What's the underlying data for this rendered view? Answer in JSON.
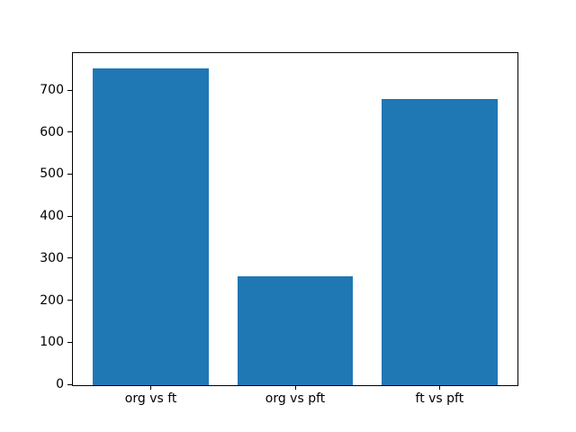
{
  "figure": {
    "background": "#ffffff",
    "title": ""
  },
  "chart_data": {
    "type": "bar",
    "categories": [
      "org vs ft",
      "org vs pft",
      "ft vs pft"
    ],
    "values": [
      754,
      259,
      680
    ],
    "title": "",
    "subtitle": "",
    "xlabel": "",
    "ylabel": "",
    "ylim": [
      0,
      790
    ],
    "yticks": [
      0,
      100,
      200,
      300,
      400,
      500,
      600,
      700
    ],
    "bar_color": "#1f77b4",
    "spine_color": "#000000",
    "tick_label_color": "#000000",
    "bar_width_fraction": 0.8,
    "grid": false,
    "legend": null
  }
}
